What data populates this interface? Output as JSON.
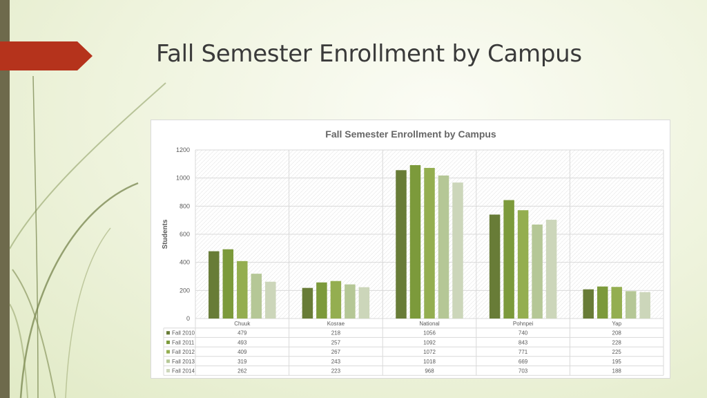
{
  "slide": {
    "title": "Fall Semester Enrollment by Campus"
  },
  "colors": {
    "accent_arrow": "#b5331c",
    "side_bar": "#6e6a4c"
  },
  "chart_data": {
    "type": "bar",
    "title": "Fall Semester Enrollment by Campus",
    "ylabel": "Students",
    "xlabel": "",
    "ylim": [
      0,
      1200
    ],
    "yticks": [
      0,
      200,
      400,
      600,
      800,
      1000,
      1200
    ],
    "grid": true,
    "legend": "data-table",
    "categories": [
      "Chuuk",
      "Kosrae",
      "National",
      "Pohnpei",
      "Yap"
    ],
    "series": [
      {
        "name": "Fall 2010",
        "color": "#687c37",
        "values": [
          479,
          218,
          1056,
          740,
          208
        ]
      },
      {
        "name": "Fall 2011",
        "color": "#7c9a3b",
        "values": [
          493,
          257,
          1092,
          843,
          228
        ]
      },
      {
        "name": "Fall 2012",
        "color": "#94ae50",
        "values": [
          409,
          267,
          1072,
          771,
          225
        ]
      },
      {
        "name": "Fall 2013",
        "color": "#b5c796",
        "values": [
          319,
          243,
          1018,
          669,
          195
        ]
      },
      {
        "name": "Fall 2014",
        "color": "#ccd6ba",
        "values": [
          262,
          223,
          968,
          703,
          188
        ]
      }
    ]
  }
}
